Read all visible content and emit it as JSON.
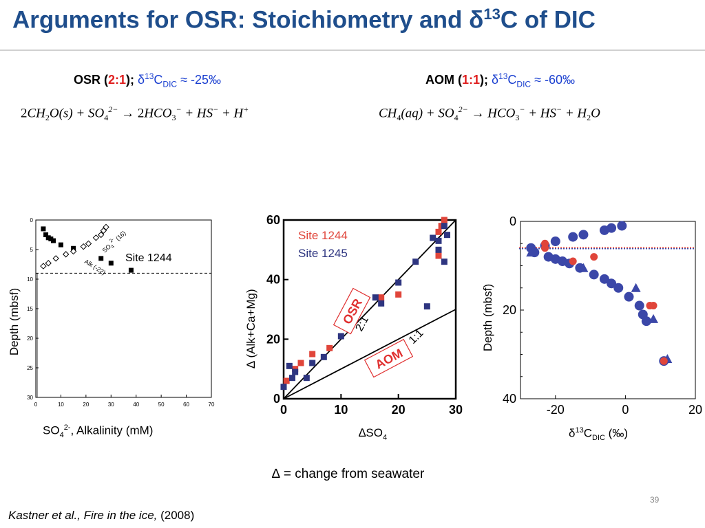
{
  "slide": {
    "title_main": "Arguments for OSR: Stoichiometry and ",
    "title_delta": "δ",
    "title_sup": "13",
    "title_end": "C of DIC",
    "page_number": "39",
    "citation_italic": "Kastner et al., Fire in the ice,",
    "citation_year": " (2008)",
    "footnote": "∆ = change from seawater"
  },
  "osr_header": {
    "label": "OSR (",
    "ratio": "2:1",
    "close": ");",
    "delta": " δ",
    "sup": "13",
    "c": "C",
    "sub": "DIC",
    "value": " ≈ -25‰"
  },
  "aom_header": {
    "label": "AOM (",
    "ratio": "1:1",
    "close": ");",
    "delta": " δ",
    "sup": "13",
    "c": "C",
    "sub": "DIC",
    "value": " ≈ -60‰"
  },
  "chart_data": [
    {
      "type": "scatter",
      "title": "",
      "xlabel_main": "SO",
      "xlabel_sub": "4",
      "xlabel_sup": "2-",
      "xlabel_rest": ", Alkalinity (mM)",
      "ylabel": "Depth (mbsf)",
      "xlim": [
        0,
        70
      ],
      "ylim": [
        0,
        30
      ],
      "x_ticks": [
        "0",
        "10",
        "20",
        "30",
        "40",
        "50",
        "60",
        "70"
      ],
      "y_ticks": [
        "0",
        "5",
        "10",
        "15",
        "20",
        "25",
        "30"
      ],
      "y_inverted": true,
      "site_label": "Site 1244",
      "curve_labels": [
        "SO",
        "4",
        "2-",
        "(16)",
        "Alk (-22)"
      ],
      "smt_depth": 9,
      "series": [
        {
          "name": "SO4",
          "marker": "filled-square",
          "points": [
            [
              3,
              1.5
            ],
            [
              4,
              2.5
            ],
            [
              5,
              3
            ],
            [
              6,
              3.2
            ],
            [
              7,
              3.5
            ],
            [
              10,
              4.2
            ],
            [
              15,
              4.8
            ],
            [
              26,
              6.5
            ],
            [
              30,
              7.3
            ],
            [
              38,
              8.5
            ]
          ]
        },
        {
          "name": "Alkalinity",
          "marker": "open-diamond",
          "points": [
            [
              3,
              7.8
            ],
            [
              5,
              7.3
            ],
            [
              8,
              6.5
            ],
            [
              12,
              5.8
            ],
            [
              15,
              5.3
            ],
            [
              19,
              4.5
            ],
            [
              21,
              4
            ],
            [
              24,
              3
            ],
            [
              26,
              2.5
            ],
            [
              27,
              1.8
            ],
            [
              28,
              1.2
            ]
          ]
        }
      ]
    },
    {
      "type": "scatter",
      "title": "",
      "xlabel_delta": "∆",
      "xlabel_main": "SO",
      "xlabel_sub": "4",
      "ylabel": "∆ (Alk+Ca+Mg)",
      "xlim": [
        0,
        30
      ],
      "ylim": [
        0,
        60
      ],
      "x_ticks": [
        "0",
        "10",
        "20",
        "30"
      ],
      "y_ticks": [
        "0",
        "20",
        "40",
        "60"
      ],
      "legend": [
        "Site 1244",
        "Site 1245"
      ],
      "legend_colors": [
        "#e0453a",
        "#2e3580"
      ],
      "lines": [
        {
          "label": "2:1",
          "slope": 2
        },
        {
          "label": "1:1",
          "slope": 1
        }
      ],
      "annotations": [
        "OSR",
        "AOM"
      ],
      "series": [
        {
          "name": "Site 1244",
          "color": "#e0453a",
          "points": [
            [
              0.5,
              6
            ],
            [
              2,
              10
            ],
            [
              3,
              12
            ],
            [
              5,
              15
            ],
            [
              8,
              17
            ],
            [
              17,
              34
            ],
            [
              20,
              35
            ],
            [
              27,
              48
            ],
            [
              27,
              56
            ],
            [
              27.5,
              58
            ],
            [
              28,
              60
            ]
          ]
        },
        {
          "name": "Site 1245",
          "color": "#2e3580",
          "points": [
            [
              0,
              4
            ],
            [
              1,
              11
            ],
            [
              1.5,
              7
            ],
            [
              2,
              9
            ],
            [
              4,
              7
            ],
            [
              5,
              12
            ],
            [
              7,
              14
            ],
            [
              10,
              21
            ],
            [
              16,
              34
            ],
            [
              17,
              32
            ],
            [
              20,
              39
            ],
            [
              23,
              46
            ],
            [
              25,
              31
            ],
            [
              26,
              54
            ],
            [
              27,
              50
            ],
            [
              27,
              53
            ],
            [
              28,
              46
            ],
            [
              28,
              58
            ],
            [
              28.5,
              55
            ]
          ]
        }
      ]
    },
    {
      "type": "scatter",
      "title": "",
      "xlabel_delta": "δ",
      "xlabel_sup": "13",
      "xlabel_main": "C",
      "xlabel_sub": "DIC",
      "xlabel_unit": " (‰)",
      "ylabel": "Depth (mbsf)",
      "xlim": [
        -30,
        20
      ],
      "ylim": [
        0,
        40
      ],
      "x_ticks": [
        "-20",
        "0",
        "20"
      ],
      "y_ticks": [
        "0",
        "20",
        "40"
      ],
      "y_inverted": true,
      "smt_depth": 6,
      "series": [
        {
          "name": "blue-circles",
          "color": "#3b47a8",
          "marker": "circle",
          "points": [
            [
              -1,
              1
            ],
            [
              -4,
              1.5
            ],
            [
              -6,
              2
            ],
            [
              -12,
              3
            ],
            [
              -15,
              3.5
            ],
            [
              -20,
              4.5
            ],
            [
              -23,
              5.5
            ],
            [
              -27,
              6
            ],
            [
              -26,
              7
            ],
            [
              -22,
              8
            ],
            [
              -20,
              8.5
            ],
            [
              -18,
              9
            ],
            [
              -16,
              9.5
            ],
            [
              -13,
              10.5
            ],
            [
              -9,
              12
            ],
            [
              -6,
              13
            ],
            [
              -4,
              14
            ],
            [
              -2,
              15
            ],
            [
              1,
              17
            ],
            [
              4,
              19
            ],
            [
              5,
              21
            ],
            [
              6,
              22.5
            ],
            [
              11,
              31.5
            ]
          ]
        },
        {
          "name": "blue-triangles",
          "color": "#3b47a8",
          "marker": "triangle",
          "points": [
            [
              -27,
              7
            ],
            [
              -12,
              10.5
            ],
            [
              3,
              15
            ],
            [
              8,
              22
            ],
            [
              12,
              31
            ]
          ]
        },
        {
          "name": "red-circles",
          "color": "#e0453a",
          "marker": "circle",
          "points": [
            [
              -23,
              5
            ],
            [
              -23,
              6
            ],
            [
              -15,
              9
            ],
            [
              -9,
              8
            ],
            [
              7,
              19
            ],
            [
              8,
              19
            ],
            [
              11,
              31.5
            ]
          ]
        }
      ]
    }
  ]
}
